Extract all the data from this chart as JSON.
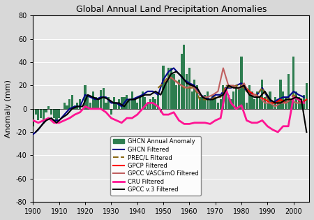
{
  "title": "Global Annual Land Precipitation Anomalies",
  "ylabel": "Anomaly (mm)",
  "xlim": [
    1900,
    2006
  ],
  "ylim": [
    -80,
    80
  ],
  "yticks": [
    -80,
    -60,
    -40,
    -20,
    0,
    20,
    40,
    60,
    80
  ],
  "xticks": [
    1900,
    1910,
    1920,
    1930,
    1940,
    1950,
    1960,
    1970,
    1980,
    1990,
    2000
  ],
  "bar_color": "#2d7d4f",
  "background_color": "#e8e8e8",
  "years": [
    1900,
    1901,
    1902,
    1903,
    1904,
    1905,
    1906,
    1907,
    1908,
    1909,
    1910,
    1911,
    1912,
    1913,
    1914,
    1915,
    1916,
    1917,
    1918,
    1919,
    1920,
    1921,
    1922,
    1923,
    1924,
    1925,
    1926,
    1927,
    1928,
    1929,
    1930,
    1931,
    1932,
    1933,
    1934,
    1935,
    1936,
    1937,
    1938,
    1939,
    1940,
    1941,
    1942,
    1943,
    1944,
    1945,
    1946,
    1947,
    1948,
    1949,
    1950,
    1951,
    1952,
    1953,
    1954,
    1955,
    1956,
    1957,
    1958,
    1959,
    1960,
    1961,
    1962,
    1963,
    1964,
    1965,
    1966,
    1967,
    1968,
    1969,
    1970,
    1971,
    1972,
    1973,
    1974,
    1975,
    1976,
    1977,
    1978,
    1979,
    1980,
    1981,
    1982,
    1983,
    1984,
    1985,
    1986,
    1987,
    1988,
    1989,
    1990,
    1991,
    1992,
    1993,
    1994,
    1995,
    1996,
    1997,
    1998,
    1999,
    2000,
    2001,
    2002,
    2003,
    2004,
    2005
  ],
  "bar_values": [
    -15,
    -5,
    -10,
    -8,
    -12,
    -3,
    2,
    -5,
    -8,
    -10,
    -8,
    0,
    5,
    3,
    8,
    12,
    3,
    5,
    8,
    0,
    20,
    12,
    5,
    15,
    10,
    8,
    16,
    18,
    5,
    10,
    -5,
    10,
    5,
    8,
    10,
    10,
    12,
    8,
    15,
    8,
    5,
    10,
    15,
    10,
    5,
    8,
    10,
    8,
    12,
    -3,
    37,
    25,
    35,
    35,
    30,
    20,
    25,
    47,
    55,
    30,
    35,
    15,
    25,
    20,
    10,
    10,
    12,
    15,
    8,
    12,
    10,
    5,
    8,
    20,
    15,
    12,
    8,
    15,
    20,
    18,
    45,
    22,
    5,
    20,
    15,
    8,
    15,
    10,
    25,
    10,
    5,
    15,
    5,
    10,
    8,
    25,
    15,
    10,
    30,
    8,
    45,
    15,
    10,
    8,
    12,
    22
  ],
  "ghcn_filtered_x": [
    1900,
    1902,
    1904,
    1906,
    1908,
    1910,
    1912,
    1914,
    1916,
    1918,
    1920,
    1922,
    1924,
    1926,
    1928,
    1930,
    1932,
    1934,
    1936,
    1938,
    1940,
    1942,
    1944,
    1946,
    1948,
    1950,
    1952,
    1954,
    1956,
    1958,
    1960,
    1962,
    1964,
    1966,
    1968,
    1970,
    1972,
    1974,
    1976,
    1978,
    1980,
    1982,
    1984,
    1986,
    1988,
    1990,
    1992,
    1994,
    1996,
    1998,
    2000,
    2002,
    2004
  ],
  "ghcn_filtered_y": [
    -22,
    -18,
    -12,
    -8,
    -10,
    -10,
    -5,
    0,
    2,
    2,
    12,
    10,
    8,
    10,
    10,
    5,
    5,
    2,
    8,
    8,
    10,
    12,
    15,
    15,
    12,
    25,
    32,
    35,
    30,
    25,
    22,
    20,
    12,
    10,
    8,
    12,
    12,
    18,
    18,
    20,
    22,
    15,
    12,
    12,
    18,
    10,
    5,
    8,
    10,
    10,
    15,
    12,
    10
  ],
  "precl_filtered_x": [
    1948,
    1950,
    1952,
    1954,
    1956,
    1958,
    1960,
    1962,
    1964,
    1966,
    1968,
    1970,
    1972,
    1974,
    1976,
    1978,
    1980,
    1982,
    1984,
    1986,
    1988,
    1990,
    1992,
    1994,
    1996,
    1998,
    2000,
    2002,
    2004
  ],
  "precl_filtered_y": [
    18,
    22,
    28,
    25,
    22,
    18,
    18,
    18,
    8,
    8,
    8,
    10,
    10,
    20,
    18,
    20,
    20,
    15,
    12,
    12,
    18,
    8,
    5,
    5,
    8,
    8,
    12,
    8,
    8
  ],
  "gpcp_filtered_x": [
    1979,
    1981,
    1983,
    1985,
    1987,
    1989,
    1991,
    1993,
    1995,
    1997,
    1999,
    2001,
    2003,
    2005
  ],
  "gpcp_filtered_y": [
    18,
    20,
    15,
    12,
    10,
    8,
    5,
    5,
    8,
    5,
    8,
    10,
    5,
    8
  ],
  "gpcc_vasclimo_x": [
    1951,
    1953,
    1955,
    1957,
    1959,
    1961,
    1963,
    1965,
    1967,
    1969,
    1971,
    1973,
    1975,
    1977,
    1979,
    1981,
    1983,
    1985,
    1987,
    1989,
    1991,
    1993,
    1995,
    1997,
    1999,
    2001,
    2003
  ],
  "gpcc_vasclimo_y": [
    24,
    27,
    23,
    20,
    18,
    20,
    15,
    10,
    10,
    12,
    15,
    35,
    20,
    20,
    17,
    22,
    12,
    12,
    10,
    5,
    5,
    2,
    5,
    5,
    8,
    5,
    5
  ],
  "cru_filtered_x": [
    1900,
    1902,
    1904,
    1906,
    1908,
    1910,
    1912,
    1914,
    1916,
    1918,
    1920,
    1922,
    1924,
    1926,
    1928,
    1930,
    1932,
    1934,
    1936,
    1938,
    1940,
    1942,
    1944,
    1946,
    1948,
    1950,
    1952,
    1954,
    1956,
    1958,
    1960,
    1962,
    1964,
    1966,
    1968,
    1970,
    1972,
    1974,
    1976,
    1978,
    1980,
    1982,
    1984,
    1986,
    1988,
    1990,
    1992,
    1994,
    1996,
    1998,
    2000,
    2002,
    2004
  ],
  "cru_filtered_y": [
    -10,
    -12,
    -10,
    -8,
    -12,
    -12,
    -10,
    -8,
    -5,
    -3,
    2,
    0,
    0,
    0,
    -3,
    -8,
    -10,
    -12,
    -8,
    -8,
    -5,
    0,
    5,
    5,
    2,
    -5,
    -5,
    -3,
    -10,
    -13,
    -13,
    -12,
    -12,
    -12,
    -13,
    -10,
    -8,
    17,
    5,
    0,
    3,
    -10,
    -12,
    -12,
    -10,
    -15,
    -18,
    -20,
    -15,
    -15,
    10,
    8,
    5
  ],
  "gpcc_v3_x": [
    1901,
    1903,
    1905,
    1907,
    1909,
    1911,
    1913,
    1915,
    1917,
    1919,
    1921,
    1923,
    1925,
    1927,
    1929,
    1931,
    1933,
    1935,
    1937,
    1939,
    1941,
    1943,
    1945,
    1947,
    1949,
    1951,
    1953,
    1955,
    1957,
    1959,
    1961,
    1963,
    1965,
    1967,
    1969,
    1971,
    1973,
    1975,
    1977,
    1979,
    1981,
    1983,
    1985,
    1987,
    1989,
    1991,
    1993,
    1995,
    1997,
    1999,
    2001,
    2003,
    2005
  ],
  "gpcc_v3_y": [
    -20,
    -15,
    -10,
    -8,
    -12,
    -8,
    -5,
    0,
    2,
    2,
    12,
    10,
    8,
    10,
    8,
    5,
    5,
    2,
    8,
    8,
    10,
    12,
    12,
    15,
    12,
    22,
    30,
    32,
    28,
    22,
    20,
    18,
    10,
    8,
    8,
    10,
    12,
    20,
    18,
    18,
    20,
    12,
    10,
    10,
    15,
    8,
    5,
    5,
    8,
    8,
    10,
    8,
    -20
  ],
  "legend_items": [
    {
      "label": "GHCN Annual Anomaly",
      "type": "bar",
      "color": "#2d7d4f"
    },
    {
      "label": "GHCN Filtered",
      "type": "line",
      "color": "#00008b",
      "lw": 1.5
    },
    {
      "label": "PREC/L Filtered",
      "type": "line",
      "color": "#8b6914",
      "lw": 1.5,
      "dashed": true
    },
    {
      "label": "GPCP Filtered",
      "type": "line",
      "color": "#ff0000",
      "lw": 1.5
    },
    {
      "label": "GPCC VASClimO Filtered",
      "type": "line",
      "color": "#c06060",
      "lw": 1.5
    },
    {
      "label": "CRU Filtered",
      "type": "line",
      "color": "#ff1493",
      "lw": 2.0
    },
    {
      "label": "GPCC v.3 Filtered",
      "type": "line",
      "color": "#000000",
      "lw": 1.5
    }
  ]
}
